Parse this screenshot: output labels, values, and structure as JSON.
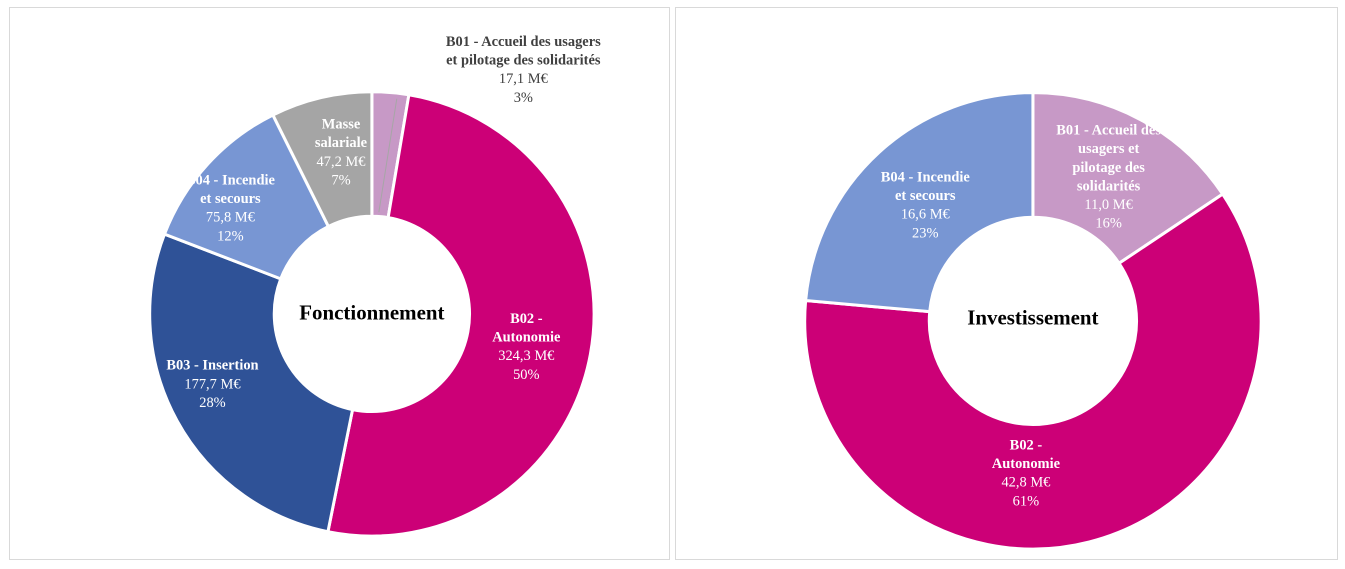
{
  "chart_data": [
    {
      "type": "pie",
      "variant": "donut",
      "title": "Fonctionnement",
      "slices": [
        {
          "name": "B01 - Accueil des usagers et pilotage des solidarités",
          "lines": [
            "B01 - Accueil des usagers",
            "et pilotage des solidarités"
          ],
          "value_label": "17,1 M€",
          "percent_label": "3%",
          "value": 17.1,
          "color": "#c799c6"
        },
        {
          "name": "B02 - Autonomie",
          "lines": [
            "B02 -",
            "Autonomie"
          ],
          "value_label": "324,3 M€",
          "percent_label": "50%",
          "value": 324.3,
          "color": "#cc0077"
        },
        {
          "name": "B03 - Insertion",
          "lines": [
            "B03 - Insertion"
          ],
          "value_label": "177,7 M€",
          "percent_label": "28%",
          "value": 177.7,
          "color": "#2f5297"
        },
        {
          "name": "B04 - Incendie et secours",
          "lines": [
            "B04 - Incendie",
            "et secours"
          ],
          "value_label": "75,8 M€",
          "percent_label": "12%",
          "value": 75.8,
          "color": "#7896d3"
        },
        {
          "name": "Masse salariale",
          "lines": [
            "Masse",
            "salariale"
          ],
          "value_label": "47,2 M€",
          "percent_label": "7%",
          "value": 47.2,
          "color": "#a5a5a5"
        }
      ]
    },
    {
      "type": "pie",
      "variant": "donut",
      "title": "Investissement",
      "slices": [
        {
          "name": "B01 - Accueil des usagers et pilotage des solidarités",
          "lines": [
            "B01 - Accueil des",
            "usagers et",
            "pilotage des",
            "solidarités"
          ],
          "value_label": "11,0 M€",
          "percent_label": "16%",
          "value": 11.0,
          "color": "#c799c6"
        },
        {
          "name": "B02 - Autonomie",
          "lines": [
            "B02 -",
            "Autonomie"
          ],
          "value_label": "42,8 M€",
          "percent_label": "61%",
          "value": 42.8,
          "color": "#cc0077"
        },
        {
          "name": "B04 - Incendie et secours",
          "lines": [
            "B04 - Incendie",
            "et secours"
          ],
          "value_label": "16,6 M€",
          "percent_label": "23%",
          "value": 16.6,
          "color": "#7896d3"
        }
      ]
    }
  ]
}
